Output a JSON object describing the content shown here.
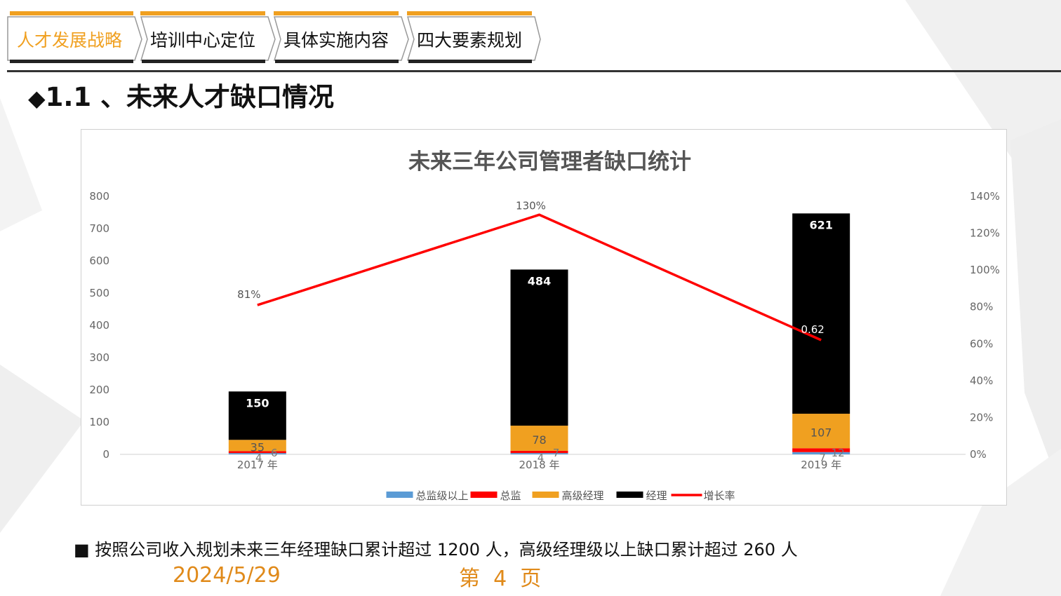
{
  "nav": {
    "tabs": [
      {
        "label": "人才发展战略",
        "active": true
      },
      {
        "label": "培训中心定位",
        "active": false
      },
      {
        "label": "具体实施内容",
        "active": false
      },
      {
        "label": "四大要素规划",
        "active": false
      }
    ]
  },
  "section": {
    "bullet_icon": "diamond-icon",
    "title": "1.1 、未来人才缺口情况"
  },
  "chart_data": {
    "type": "bar",
    "stacked": true,
    "title": "未来三年公司管理者缺口统计",
    "categories": [
      "2017 年",
      "2018 年",
      "2019 年"
    ],
    "series": [
      {
        "name": "总监级以上",
        "color": "#5b9bd5",
        "values": [
          4,
          4,
          7
        ],
        "labels": [
          "4",
          "4",
          "7"
        ]
      },
      {
        "name": "总监",
        "color": "#ff0000",
        "values": [
          6,
          7,
          12
        ],
        "labels": [
          "6",
          "7",
          "12"
        ]
      },
      {
        "name": "高级经理",
        "color": "#f0a020",
        "values": [
          35,
          78,
          107
        ],
        "labels": [
          "35",
          "78",
          "107"
        ]
      },
      {
        "name": "经理",
        "color": "#000000",
        "values": [
          150,
          484,
          621
        ],
        "labels": [
          "150",
          "484",
          "621"
        ]
      }
    ],
    "line_series": {
      "name": "增长率",
      "color": "#ff0000",
      "values": [
        0.81,
        1.3,
        0.62
      ],
      "labels": [
        "81%",
        "130%",
        "0.62"
      ]
    },
    "y_axis": {
      "min": 0,
      "max": 800,
      "ticks": [
        "0",
        "100",
        "200",
        "300",
        "400",
        "500",
        "600",
        "700",
        "800"
      ]
    },
    "y2_axis": {
      "min": 0,
      "max": 1.4,
      "ticks": [
        "0%",
        "20%",
        "40%",
        "60%",
        "80%",
        "100%",
        "120%",
        "140%"
      ]
    },
    "legend_position": "bottom"
  },
  "bullet_text": {
    "icon": "square-bullet-icon",
    "text": "■ 按照公司收入规划未来三年经理缺口累计超过 1200 人，高级经理级以上缺口累计超过 260 人"
  },
  "footer": {
    "date": "2024/5/29",
    "page": "第  4  页"
  }
}
